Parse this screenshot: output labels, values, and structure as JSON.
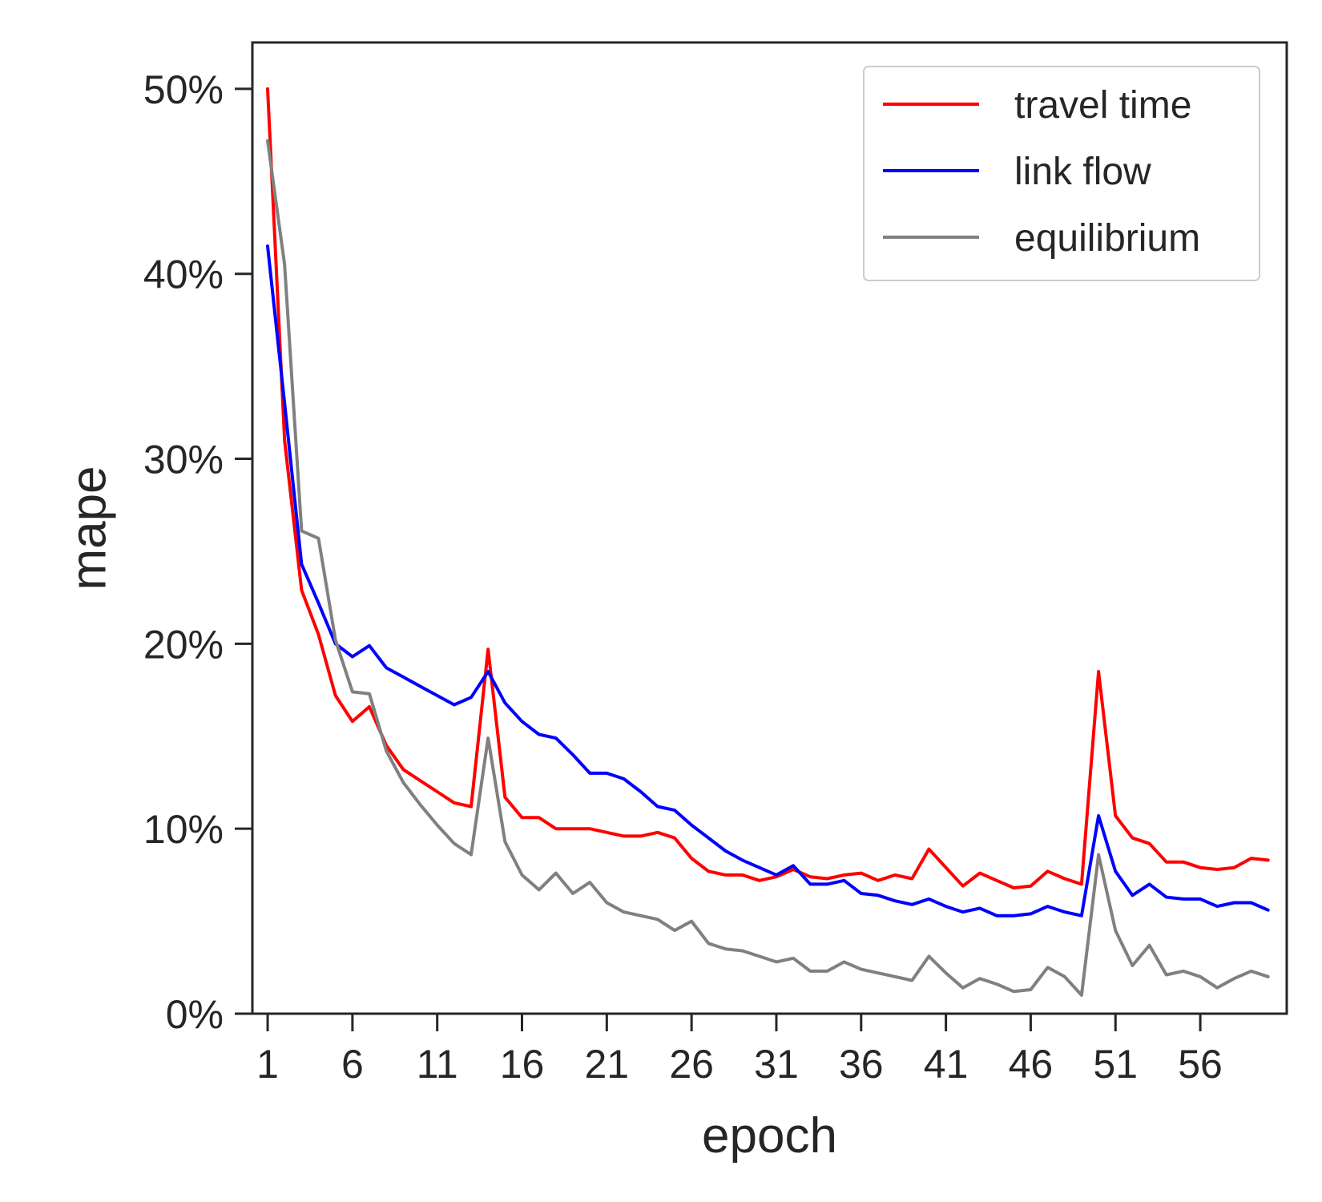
{
  "chart_data": {
    "type": "line",
    "xlabel": "epoch",
    "ylabel": "mape",
    "xlim": [
      0.1,
      61.1
    ],
    "ylim": [
      0,
      0.5251
    ],
    "xticks": [
      1,
      6,
      11,
      16,
      21,
      26,
      31,
      36,
      41,
      46,
      51,
      56
    ],
    "xtick_labels": [
      "1",
      "6",
      "11",
      "16",
      "21",
      "26",
      "31",
      "36",
      "41",
      "46",
      "51",
      "56"
    ],
    "yticks": [
      0,
      0.1,
      0.2,
      0.3,
      0.4,
      0.5
    ],
    "ytick_labels": [
      "0%",
      "10%",
      "20%",
      "30%",
      "40%",
      "50%"
    ],
    "grid": false,
    "legend_position": "top-right",
    "x": [
      1,
      2,
      3,
      4,
      5,
      6,
      7,
      8,
      9,
      10,
      11,
      12,
      13,
      14,
      15,
      16,
      17,
      18,
      19,
      20,
      21,
      22,
      23,
      24,
      25,
      26,
      27,
      28,
      29,
      30,
      31,
      32,
      33,
      34,
      35,
      36,
      37,
      38,
      39,
      40,
      41,
      42,
      43,
      44,
      45,
      46,
      47,
      48,
      49,
      50,
      51,
      52,
      53,
      54,
      55,
      56,
      57,
      58,
      59,
      60
    ],
    "series": [
      {
        "name": "travel time",
        "color": "#ff0000",
        "values": [
          0.5,
          0.31,
          0.229,
          0.205,
          0.172,
          0.158,
          0.166,
          0.145,
          0.132,
          0.126,
          0.12,
          0.114,
          0.112,
          0.197,
          0.117,
          0.106,
          0.106,
          0.1,
          0.1,
          0.1,
          0.098,
          0.096,
          0.096,
          0.098,
          0.095,
          0.084,
          0.077,
          0.075,
          0.075,
          0.072,
          0.074,
          0.078,
          0.074,
          0.073,
          0.075,
          0.076,
          0.072,
          0.075,
          0.073,
          0.089,
          0.079,
          0.069,
          0.076,
          0.072,
          0.068,
          0.069,
          0.077,
          0.073,
          0.07,
          0.185,
          0.107,
          0.095,
          0.092,
          0.082,
          0.082,
          0.079,
          0.078,
          0.079,
          0.084,
          0.083
        ]
      },
      {
        "name": "link flow",
        "color": "#0000ff",
        "values": [
          0.415,
          0.33,
          0.243,
          0.222,
          0.2,
          0.193,
          0.199,
          0.187,
          0.182,
          0.177,
          0.172,
          0.167,
          0.171,
          0.185,
          0.168,
          0.158,
          0.151,
          0.149,
          0.14,
          0.13,
          0.13,
          0.127,
          0.12,
          0.112,
          0.11,
          0.102,
          0.095,
          0.088,
          0.083,
          0.079,
          0.075,
          0.08,
          0.07,
          0.07,
          0.072,
          0.065,
          0.064,
          0.061,
          0.059,
          0.062,
          0.058,
          0.055,
          0.057,
          0.053,
          0.053,
          0.054,
          0.058,
          0.055,
          0.053,
          0.107,
          0.077,
          0.064,
          0.07,
          0.063,
          0.062,
          0.062,
          0.058,
          0.06,
          0.06,
          0.056
        ]
      },
      {
        "name": "equilibrium",
        "color": "#808080",
        "values": [
          0.472,
          0.405,
          0.261,
          0.257,
          0.202,
          0.174,
          0.173,
          0.142,
          0.125,
          0.113,
          0.102,
          0.092,
          0.086,
          0.149,
          0.093,
          0.075,
          0.067,
          0.076,
          0.065,
          0.071,
          0.06,
          0.055,
          0.053,
          0.051,
          0.045,
          0.05,
          0.038,
          0.035,
          0.034,
          0.031,
          0.028,
          0.03,
          0.023,
          0.023,
          0.028,
          0.024,
          0.022,
          0.02,
          0.018,
          0.031,
          0.022,
          0.014,
          0.019,
          0.016,
          0.012,
          0.013,
          0.025,
          0.02,
          0.01,
          0.086,
          0.045,
          0.026,
          0.037,
          0.021,
          0.023,
          0.02,
          0.014,
          0.019,
          0.023,
          0.02
        ]
      }
    ]
  }
}
